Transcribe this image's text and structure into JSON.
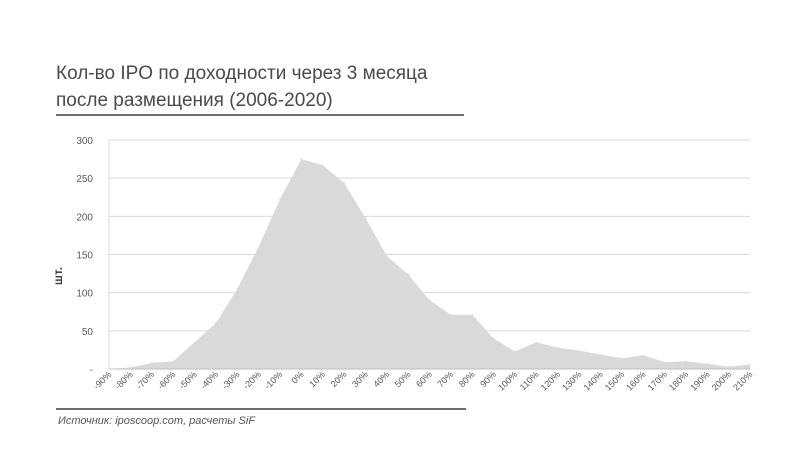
{
  "title_line1": "Кол-во IPO по доходности через 3 месяца",
  "title_line2": "после размещения (2006-2020)",
  "source": "Источник: iposcoop.com, расчеты SiF",
  "chart_data": {
    "type": "area",
    "ylabel": "шт.",
    "ylim": [
      0,
      300
    ],
    "yticks": [
      "-",
      "50",
      "100",
      "150",
      "200",
      "250",
      "300"
    ],
    "grid": true,
    "fill_color": "#d9d9d9",
    "x": [
      "-90%",
      "-80%",
      "-70%",
      "-60%",
      "-50%",
      "-40%",
      "-30%",
      "-20%",
      "-10%",
      "0%",
      "10%",
      "20%",
      "30%",
      "40%",
      "50%",
      "60%",
      "70%",
      "80%",
      "90%",
      "100%",
      "110%",
      "120%",
      "130%",
      "140%",
      "150%",
      "160%",
      "170%",
      "180%",
      "190%",
      "200%",
      "210%"
    ],
    "values": [
      0,
      2,
      8,
      10,
      35,
      60,
      105,
      160,
      222,
      275,
      267,
      244,
      198,
      148,
      124,
      90,
      71,
      71,
      40,
      23,
      35,
      28,
      24,
      19,
      14,
      18,
      9,
      10,
      7,
      3,
      6
    ]
  }
}
